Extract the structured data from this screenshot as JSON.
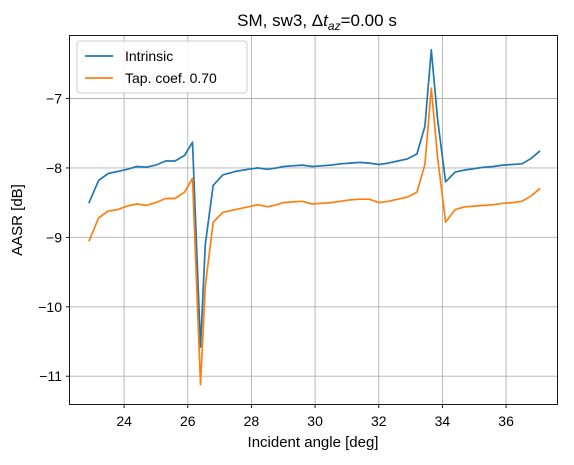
{
  "chart_data": {
    "type": "line",
    "title": {
      "prefix": "SM, sw3, Δ",
      "symbol": "t",
      "subscript": "az",
      "suffix": "=0.00 s"
    },
    "xlabel": "Incident angle [deg]",
    "ylabel": "AASR [dB]",
    "xlim": [
      22.3,
      37.6
    ],
    "ylim": [
      -11.4,
      -6.1
    ],
    "xticks": [
      24,
      26,
      28,
      30,
      32,
      34,
      36
    ],
    "yticks": [
      -11,
      -10,
      -9,
      -8,
      -7
    ],
    "grid": true,
    "legend_position": "top-left",
    "series": [
      {
        "name": "Intrinsic",
        "color": "#1f77b4",
        "x": [
          22.9,
          23.2,
          23.5,
          23.8,
          24.1,
          24.4,
          24.7,
          25.0,
          25.3,
          25.6,
          25.9,
          26.15,
          26.4,
          26.55,
          26.8,
          27.1,
          27.5,
          27.9,
          28.2,
          28.5,
          28.8,
          29.0,
          29.3,
          29.6,
          29.9,
          30.2,
          30.5,
          30.8,
          31.1,
          31.4,
          31.7,
          32.0,
          32.3,
          32.6,
          32.9,
          33.2,
          33.45,
          33.65,
          33.85,
          34.1,
          34.4,
          34.7,
          35.0,
          35.3,
          35.6,
          35.9,
          36.2,
          36.5,
          36.8,
          37.05
        ],
        "values": [
          -8.5,
          -8.18,
          -8.08,
          -8.05,
          -8.02,
          -7.98,
          -7.99,
          -7.96,
          -7.9,
          -7.9,
          -7.82,
          -7.63,
          -10.58,
          -9.1,
          -8.25,
          -8.1,
          -8.05,
          -8.02,
          -8.0,
          -8.02,
          -8.0,
          -7.98,
          -7.97,
          -7.96,
          -7.98,
          -7.97,
          -7.96,
          -7.94,
          -7.93,
          -7.92,
          -7.93,
          -7.95,
          -7.93,
          -7.9,
          -7.87,
          -7.8,
          -7.4,
          -6.3,
          -7.3,
          -8.2,
          -8.06,
          -8.03,
          -8.01,
          -7.99,
          -7.98,
          -7.96,
          -7.95,
          -7.94,
          -7.86,
          -7.76
        ]
      },
      {
        "name": "Tap. coef. 0.70",
        "color": "#ff7f0e",
        "x": [
          22.9,
          23.2,
          23.5,
          23.8,
          24.1,
          24.4,
          24.7,
          25.0,
          25.3,
          25.6,
          25.9,
          26.15,
          26.4,
          26.55,
          26.8,
          27.1,
          27.5,
          27.9,
          28.2,
          28.5,
          28.8,
          29.0,
          29.3,
          29.6,
          29.9,
          30.2,
          30.5,
          30.8,
          31.1,
          31.4,
          31.7,
          32.0,
          32.3,
          32.6,
          32.9,
          33.2,
          33.45,
          33.65,
          33.85,
          34.1,
          34.4,
          34.7,
          35.0,
          35.3,
          35.6,
          35.9,
          36.2,
          36.5,
          36.8,
          37.05
        ],
        "values": [
          -9.05,
          -8.72,
          -8.62,
          -8.6,
          -8.55,
          -8.52,
          -8.54,
          -8.5,
          -8.44,
          -8.44,
          -8.35,
          -8.15,
          -11.12,
          -9.7,
          -8.78,
          -8.64,
          -8.6,
          -8.56,
          -8.53,
          -8.56,
          -8.53,
          -8.5,
          -8.49,
          -8.48,
          -8.52,
          -8.51,
          -8.5,
          -8.48,
          -8.46,
          -8.45,
          -8.45,
          -8.5,
          -8.48,
          -8.45,
          -8.42,
          -8.35,
          -7.95,
          -6.85,
          -7.85,
          -8.78,
          -8.6,
          -8.56,
          -8.55,
          -8.54,
          -8.53,
          -8.51,
          -8.5,
          -8.48,
          -8.4,
          -8.3
        ]
      }
    ]
  }
}
